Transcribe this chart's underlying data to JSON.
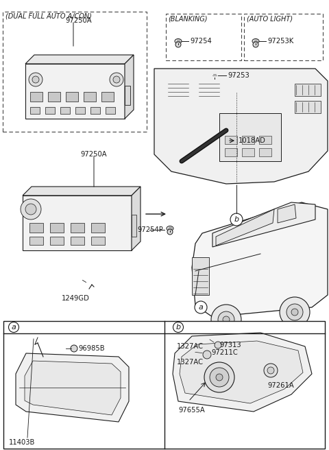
{
  "bg_color": "#ffffff",
  "line_color": "#1a1a1a",
  "dashed_color": "#444444",
  "fig_width": 4.8,
  "fig_height": 6.56,
  "dpi": 100,
  "labels": {
    "dual_full_auto_acon": "(DUAL FULL AUTO A/CON)",
    "blanking": "(BLANKING)",
    "auto_light": "(AUTO LIGHT)",
    "part_97250A_top": "97250A",
    "part_97254": "97254",
    "part_97253K": "97253K",
    "part_97253": "97253",
    "part_97250A_mid": "97250A",
    "part_1018AD": "1018AD",
    "part_97254P": "97254P",
    "part_1249GD": "1249GD",
    "part_96985B": "96985B",
    "part_11403B": "11403B",
    "part_97655A": "97655A",
    "part_1327AC_top": "1327AC",
    "part_97261A": "97261A",
    "part_97211C": "97211C",
    "part_1327AC_bot": "1327AC",
    "part_97313": "97313",
    "label_a": "a",
    "label_b": "b"
  },
  "fs_tiny": 5.5,
  "fs_small": 6.5,
  "fs_label": 7.2,
  "fs_header": 7.0
}
